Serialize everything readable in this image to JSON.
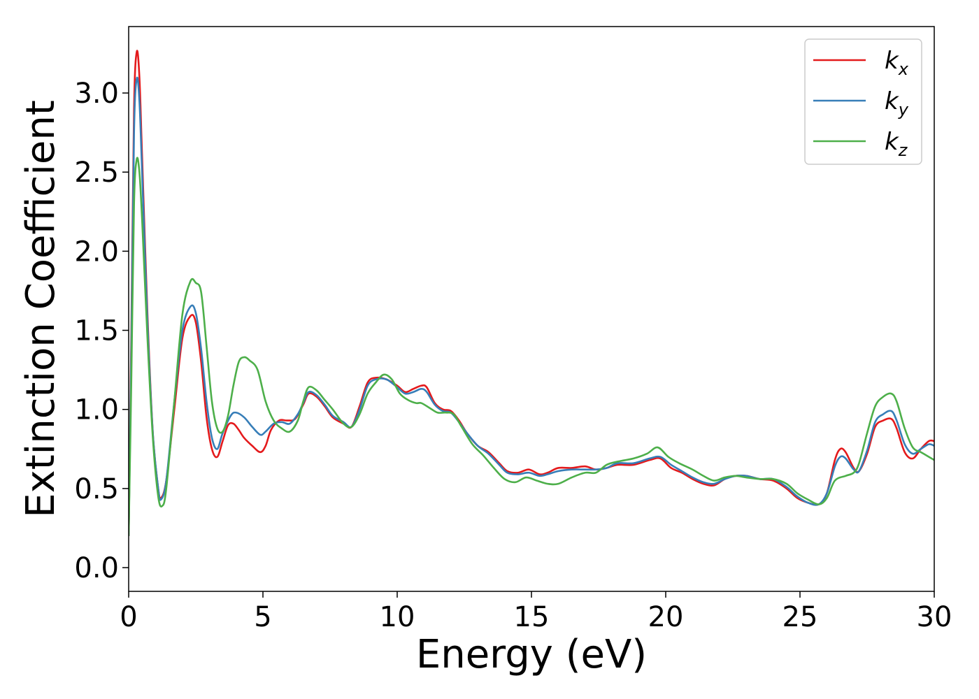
{
  "chart_data": {
    "type": "line",
    "title": "",
    "xlabel": "Energy (eV)",
    "ylabel": "Extinction Coefficient",
    "xlim": [
      0,
      30
    ],
    "ylim": [
      -0.15,
      3.42
    ],
    "xticks": [
      0,
      5,
      10,
      15,
      20,
      25,
      30
    ],
    "xtick_labels": [
      "0",
      "5",
      "10",
      "15",
      "20",
      "25",
      "30"
    ],
    "yticks": [
      0.0,
      0.5,
      1.0,
      1.5,
      2.0,
      2.5,
      3.0
    ],
    "ytick_labels": [
      "0.0",
      "0.5",
      "1.0",
      "1.5",
      "2.0",
      "2.5",
      "3.0"
    ],
    "grid": false,
    "legend_position": "top-right",
    "series": [
      {
        "name": "k",
        "subscript": "x",
        "color": "#e41a1c",
        "points": [
          [
            0,
            0.2
          ],
          [
            0.1,
            1.5
          ],
          [
            0.2,
            2.9
          ],
          [
            0.3,
            3.26
          ],
          [
            0.4,
            3.1
          ],
          [
            0.5,
            2.6
          ],
          [
            0.7,
            1.6
          ],
          [
            0.9,
            0.85
          ],
          [
            1.1,
            0.5
          ],
          [
            1.2,
            0.44
          ],
          [
            1.4,
            0.55
          ],
          [
            1.7,
            1.0
          ],
          [
            2.0,
            1.45
          ],
          [
            2.3,
            1.59
          ],
          [
            2.5,
            1.55
          ],
          [
            2.7,
            1.3
          ],
          [
            2.9,
            0.95
          ],
          [
            3.1,
            0.75
          ],
          [
            3.3,
            0.7
          ],
          [
            3.5,
            0.8
          ],
          [
            3.7,
            0.9
          ],
          [
            3.9,
            0.91
          ],
          [
            4.1,
            0.87
          ],
          [
            4.3,
            0.82
          ],
          [
            4.6,
            0.77
          ],
          [
            4.9,
            0.73
          ],
          [
            5.1,
            0.77
          ],
          [
            5.3,
            0.87
          ],
          [
            5.6,
            0.93
          ],
          [
            5.9,
            0.93
          ],
          [
            6.2,
            0.94
          ],
          [
            6.5,
            1.03
          ],
          [
            6.7,
            1.1
          ],
          [
            7.0,
            1.08
          ],
          [
            7.3,
            1.02
          ],
          [
            7.6,
            0.95
          ],
          [
            8.0,
            0.91
          ],
          [
            8.3,
            0.89
          ],
          [
            8.6,
            1.02
          ],
          [
            8.9,
            1.17
          ],
          [
            9.2,
            1.2
          ],
          [
            9.6,
            1.19
          ],
          [
            10.0,
            1.15
          ],
          [
            10.3,
            1.11
          ],
          [
            10.6,
            1.13
          ],
          [
            10.9,
            1.15
          ],
          [
            11.1,
            1.14
          ],
          [
            11.4,
            1.04
          ],
          [
            11.7,
            1.0
          ],
          [
            12.0,
            0.99
          ],
          [
            12.3,
            0.93
          ],
          [
            12.6,
            0.85
          ],
          [
            13.0,
            0.77
          ],
          [
            13.4,
            0.73
          ],
          [
            13.8,
            0.66
          ],
          [
            14.1,
            0.61
          ],
          [
            14.5,
            0.6
          ],
          [
            14.9,
            0.62
          ],
          [
            15.3,
            0.59
          ],
          [
            15.6,
            0.6
          ],
          [
            16.0,
            0.63
          ],
          [
            16.5,
            0.63
          ],
          [
            17.0,
            0.64
          ],
          [
            17.4,
            0.62
          ],
          [
            17.8,
            0.63
          ],
          [
            18.2,
            0.65
          ],
          [
            18.8,
            0.65
          ],
          [
            19.4,
            0.68
          ],
          [
            19.8,
            0.69
          ],
          [
            20.2,
            0.63
          ],
          [
            20.6,
            0.6
          ],
          [
            21.0,
            0.56
          ],
          [
            21.4,
            0.53
          ],
          [
            21.8,
            0.52
          ],
          [
            22.2,
            0.56
          ],
          [
            22.6,
            0.58
          ],
          [
            23.0,
            0.58
          ],
          [
            23.5,
            0.56
          ],
          [
            24.0,
            0.55
          ],
          [
            24.5,
            0.5
          ],
          [
            24.9,
            0.44
          ],
          [
            25.3,
            0.41
          ],
          [
            25.7,
            0.4
          ],
          [
            26.0,
            0.47
          ],
          [
            26.3,
            0.68
          ],
          [
            26.5,
            0.75
          ],
          [
            26.7,
            0.73
          ],
          [
            27.0,
            0.63
          ],
          [
            27.2,
            0.61
          ],
          [
            27.5,
            0.72
          ],
          [
            27.8,
            0.89
          ],
          [
            28.1,
            0.93
          ],
          [
            28.4,
            0.94
          ],
          [
            28.6,
            0.88
          ],
          [
            28.9,
            0.73
          ],
          [
            29.2,
            0.69
          ],
          [
            29.5,
            0.75
          ],
          [
            29.8,
            0.8
          ],
          [
            30.0,
            0.8
          ]
        ]
      },
      {
        "name": "k",
        "subscript": "y",
        "color": "#377eb8",
        "points": [
          [
            0,
            0.2
          ],
          [
            0.1,
            1.4
          ],
          [
            0.2,
            2.75
          ],
          [
            0.3,
            3.09
          ],
          [
            0.4,
            2.95
          ],
          [
            0.5,
            2.5
          ],
          [
            0.7,
            1.55
          ],
          [
            0.9,
            0.85
          ],
          [
            1.1,
            0.5
          ],
          [
            1.2,
            0.43
          ],
          [
            1.4,
            0.55
          ],
          [
            1.7,
            1.05
          ],
          [
            2.0,
            1.5
          ],
          [
            2.3,
            1.65
          ],
          [
            2.5,
            1.61
          ],
          [
            2.7,
            1.38
          ],
          [
            2.9,
            1.05
          ],
          [
            3.1,
            0.82
          ],
          [
            3.3,
            0.75
          ],
          [
            3.5,
            0.85
          ],
          [
            3.8,
            0.96
          ],
          [
            4.0,
            0.98
          ],
          [
            4.3,
            0.95
          ],
          [
            4.6,
            0.89
          ],
          [
            4.9,
            0.84
          ],
          [
            5.1,
            0.86
          ],
          [
            5.4,
            0.91
          ],
          [
            5.7,
            0.92
          ],
          [
            6.0,
            0.91
          ],
          [
            6.3,
            0.97
          ],
          [
            6.5,
            1.04
          ],
          [
            6.7,
            1.11
          ],
          [
            7.0,
            1.09
          ],
          [
            7.3,
            1.03
          ],
          [
            7.6,
            0.96
          ],
          [
            8.0,
            0.92
          ],
          [
            8.3,
            0.89
          ],
          [
            8.6,
            1.0
          ],
          [
            8.9,
            1.15
          ],
          [
            9.2,
            1.19
          ],
          [
            9.6,
            1.19
          ],
          [
            10.0,
            1.14
          ],
          [
            10.3,
            1.1
          ],
          [
            10.6,
            1.11
          ],
          [
            10.9,
            1.13
          ],
          [
            11.1,
            1.11
          ],
          [
            11.4,
            1.03
          ],
          [
            11.7,
            0.99
          ],
          [
            12.0,
            0.98
          ],
          [
            12.3,
            0.92
          ],
          [
            12.6,
            0.85
          ],
          [
            13.0,
            0.77
          ],
          [
            13.4,
            0.72
          ],
          [
            13.8,
            0.65
          ],
          [
            14.1,
            0.6
          ],
          [
            14.5,
            0.59
          ],
          [
            14.9,
            0.6
          ],
          [
            15.3,
            0.58
          ],
          [
            15.6,
            0.59
          ],
          [
            16.0,
            0.61
          ],
          [
            16.5,
            0.62
          ],
          [
            17.0,
            0.62
          ],
          [
            17.4,
            0.62
          ],
          [
            17.8,
            0.63
          ],
          [
            18.2,
            0.66
          ],
          [
            18.8,
            0.66
          ],
          [
            19.4,
            0.69
          ],
          [
            19.8,
            0.7
          ],
          [
            20.2,
            0.65
          ],
          [
            20.6,
            0.61
          ],
          [
            21.0,
            0.57
          ],
          [
            21.4,
            0.54
          ],
          [
            21.8,
            0.53
          ],
          [
            22.2,
            0.56
          ],
          [
            22.6,
            0.58
          ],
          [
            23.0,
            0.58
          ],
          [
            23.5,
            0.56
          ],
          [
            24.0,
            0.56
          ],
          [
            24.5,
            0.51
          ],
          [
            24.9,
            0.45
          ],
          [
            25.3,
            0.41
          ],
          [
            25.7,
            0.4
          ],
          [
            26.0,
            0.47
          ],
          [
            26.3,
            0.64
          ],
          [
            26.5,
            0.7
          ],
          [
            26.7,
            0.69
          ],
          [
            27.0,
            0.62
          ],
          [
            27.2,
            0.61
          ],
          [
            27.5,
            0.74
          ],
          [
            27.8,
            0.92
          ],
          [
            28.1,
            0.97
          ],
          [
            28.4,
            0.99
          ],
          [
            28.6,
            0.93
          ],
          [
            28.9,
            0.78
          ],
          [
            29.2,
            0.72
          ],
          [
            29.5,
            0.75
          ],
          [
            29.8,
            0.78
          ],
          [
            30.0,
            0.77
          ]
        ]
      },
      {
        "name": "k",
        "subscript": "z",
        "color": "#4daf4a",
        "points": [
          [
            0,
            0.2
          ],
          [
            0.1,
            1.2
          ],
          [
            0.2,
            2.3
          ],
          [
            0.3,
            2.58
          ],
          [
            0.4,
            2.5
          ],
          [
            0.5,
            2.2
          ],
          [
            0.7,
            1.45
          ],
          [
            0.9,
            0.82
          ],
          [
            1.1,
            0.45
          ],
          [
            1.25,
            0.39
          ],
          [
            1.4,
            0.5
          ],
          [
            1.7,
            1.05
          ],
          [
            2.0,
            1.6
          ],
          [
            2.3,
            1.81
          ],
          [
            2.5,
            1.8
          ],
          [
            2.7,
            1.74
          ],
          [
            2.9,
            1.4
          ],
          [
            3.1,
            1.05
          ],
          [
            3.3,
            0.88
          ],
          [
            3.5,
            0.86
          ],
          [
            3.7,
            0.96
          ],
          [
            3.9,
            1.15
          ],
          [
            4.1,
            1.3
          ],
          [
            4.3,
            1.33
          ],
          [
            4.5,
            1.31
          ],
          [
            4.8,
            1.25
          ],
          [
            5.1,
            1.05
          ],
          [
            5.4,
            0.93
          ],
          [
            5.7,
            0.88
          ],
          [
            6.0,
            0.86
          ],
          [
            6.3,
            0.93
          ],
          [
            6.5,
            1.05
          ],
          [
            6.7,
            1.14
          ],
          [
            7.0,
            1.12
          ],
          [
            7.3,
            1.06
          ],
          [
            7.6,
            1.0
          ],
          [
            8.0,
            0.91
          ],
          [
            8.3,
            0.89
          ],
          [
            8.6,
            0.97
          ],
          [
            8.9,
            1.1
          ],
          [
            9.2,
            1.17
          ],
          [
            9.5,
            1.22
          ],
          [
            9.8,
            1.19
          ],
          [
            10.1,
            1.1
          ],
          [
            10.4,
            1.06
          ],
          [
            10.7,
            1.04
          ],
          [
            10.9,
            1.04
          ],
          [
            11.2,
            1.01
          ],
          [
            11.5,
            0.98
          ],
          [
            11.8,
            0.98
          ],
          [
            12.1,
            0.97
          ],
          [
            12.4,
            0.89
          ],
          [
            12.8,
            0.78
          ],
          [
            13.2,
            0.71
          ],
          [
            13.6,
            0.63
          ],
          [
            14.0,
            0.56
          ],
          [
            14.4,
            0.54
          ],
          [
            14.8,
            0.57
          ],
          [
            15.2,
            0.55
          ],
          [
            15.6,
            0.53
          ],
          [
            16.0,
            0.53
          ],
          [
            16.5,
            0.57
          ],
          [
            17.0,
            0.6
          ],
          [
            17.4,
            0.6
          ],
          [
            17.8,
            0.65
          ],
          [
            18.2,
            0.67
          ],
          [
            18.8,
            0.69
          ],
          [
            19.3,
            0.72
          ],
          [
            19.7,
            0.76
          ],
          [
            20.1,
            0.7
          ],
          [
            20.5,
            0.66
          ],
          [
            21.0,
            0.62
          ],
          [
            21.4,
            0.58
          ],
          [
            21.8,
            0.55
          ],
          [
            22.2,
            0.57
          ],
          [
            22.6,
            0.58
          ],
          [
            23.0,
            0.57
          ],
          [
            23.5,
            0.56
          ],
          [
            24.0,
            0.56
          ],
          [
            24.5,
            0.53
          ],
          [
            24.9,
            0.47
          ],
          [
            25.3,
            0.43
          ],
          [
            25.7,
            0.4
          ],
          [
            26.0,
            0.44
          ],
          [
            26.3,
            0.55
          ],
          [
            26.7,
            0.58
          ],
          [
            27.0,
            0.6
          ],
          [
            27.2,
            0.66
          ],
          [
            27.5,
            0.85
          ],
          [
            27.8,
            1.02
          ],
          [
            28.1,
            1.08
          ],
          [
            28.4,
            1.1
          ],
          [
            28.6,
            1.05
          ],
          [
            28.9,
            0.88
          ],
          [
            29.2,
            0.76
          ],
          [
            29.5,
            0.73
          ],
          [
            29.8,
            0.7
          ],
          [
            30.0,
            0.68
          ]
        ]
      }
    ]
  }
}
